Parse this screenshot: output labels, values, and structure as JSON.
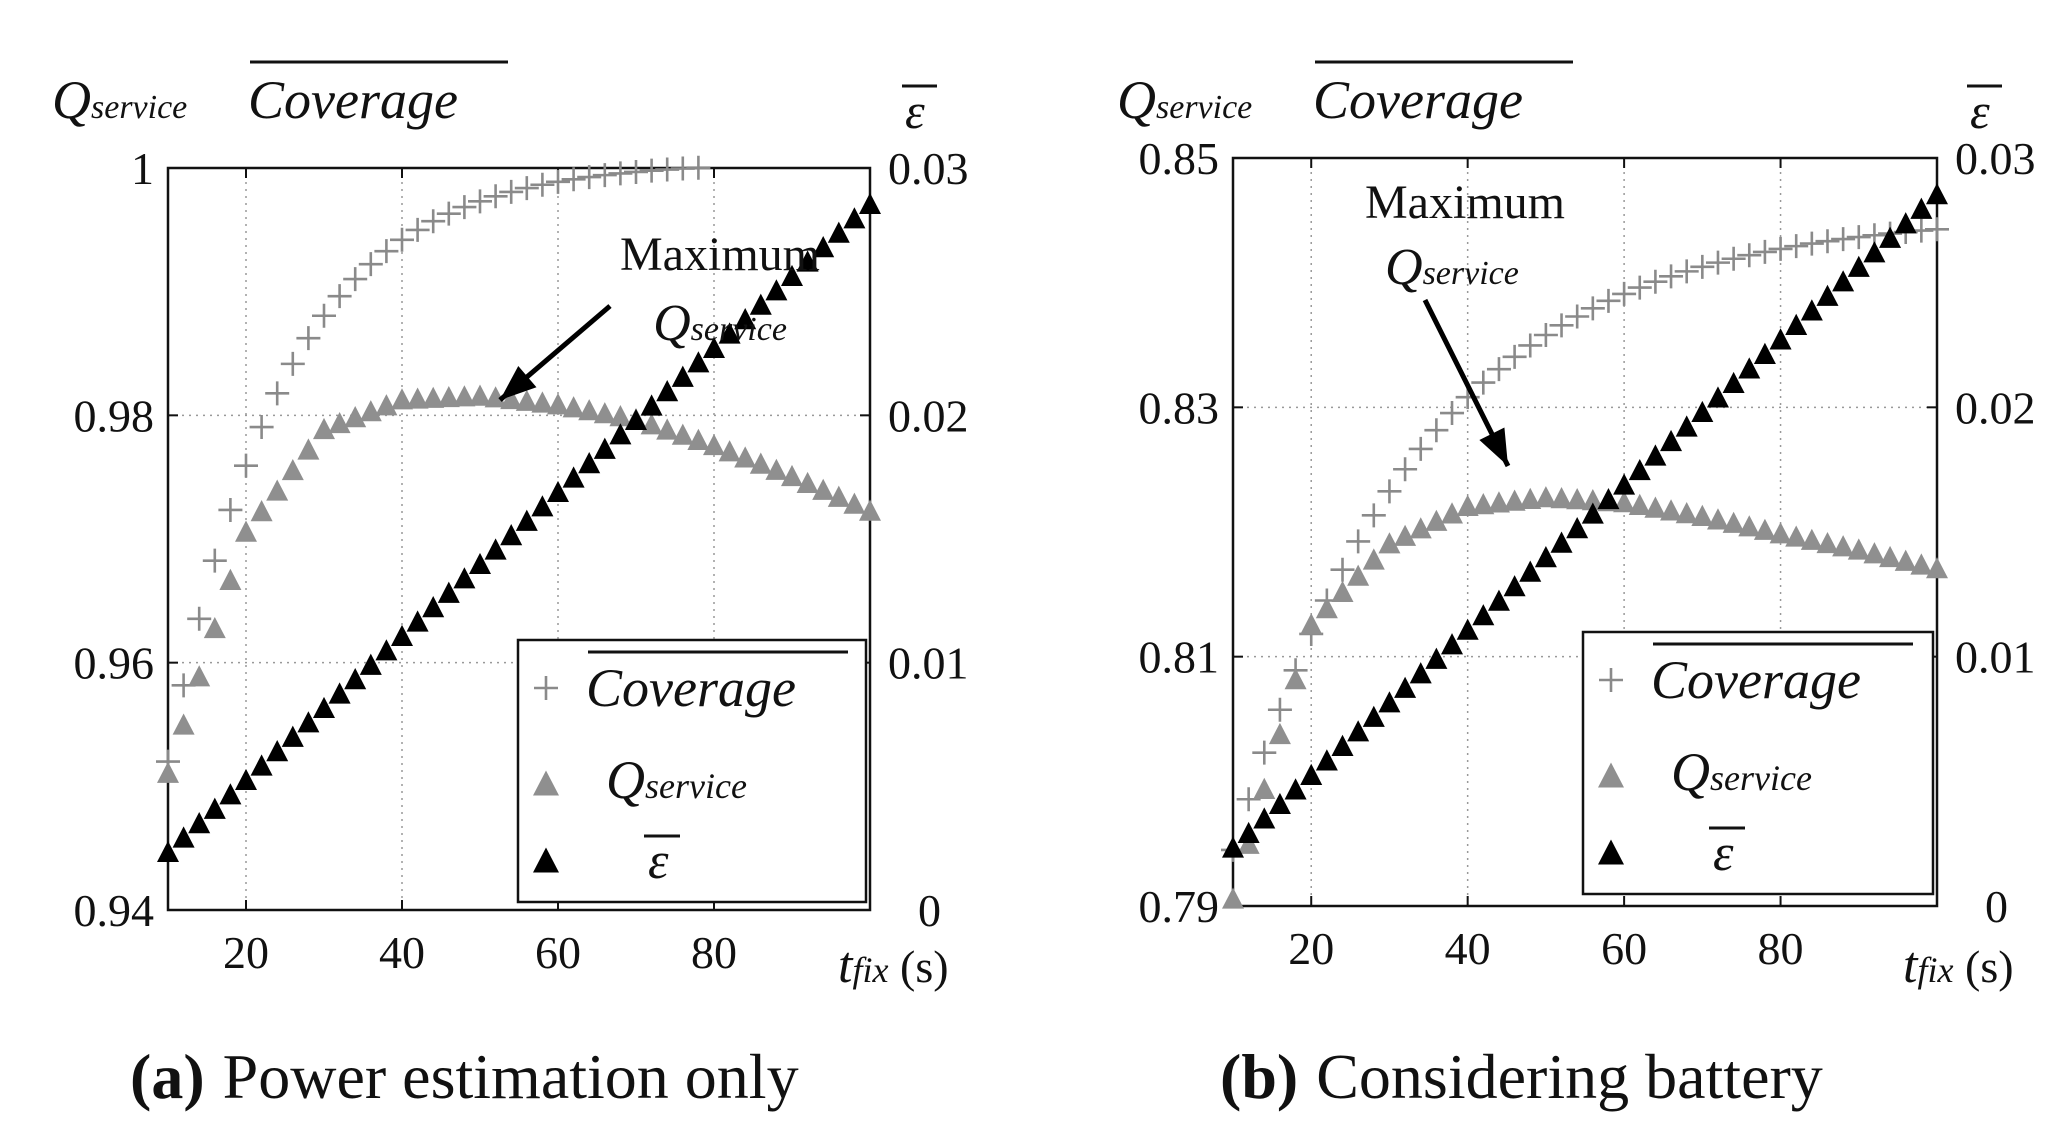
{
  "colors": {
    "coverage": "#8a8a8a",
    "qservice": "#8f8f8f",
    "epsilon": "#000000",
    "grid": "#999999"
  },
  "labels": {
    "q_main": "Q",
    "q_sub": "service",
    "coverage": "Coverage",
    "epsilon": "ε",
    "tfix_main": "t",
    "tfix_sub": "fix",
    "seconds": "(s)",
    "maximum": "Maximum"
  },
  "chart_data": [
    {
      "type": "scatter",
      "panel": "a",
      "panel_label": "(a)",
      "title": "Power estimation only",
      "xlabel": "t_fix (s)",
      "ylabel_left": "Q_service, Coverage (mean)",
      "ylabel_right": "ε (mean)",
      "xlim": [
        10,
        100
      ],
      "ylim_left": [
        0.94,
        1.0
      ],
      "ylim_right": [
        0,
        0.03
      ],
      "x_ticks": [
        20,
        40,
        60,
        80
      ],
      "x_tick_labels": [
        "20",
        "40",
        "60",
        "80"
      ],
      "y_left_ticks": [
        0.94,
        0.96,
        0.98,
        1.0
      ],
      "y_left_tick_labels": [
        "0.94",
        "0.96",
        "0.98",
        "1"
      ],
      "y_right_ticks": [
        0,
        0.01,
        0.02,
        0.03
      ],
      "y_right_tick_labels": [
        "0",
        "0.01",
        "0.02",
        "0.03"
      ],
      "legend": [
        "Coverage",
        "Q_service",
        "ε"
      ],
      "legend_position": "bottom-right",
      "annotation": {
        "text": "Maximum Q_service",
        "points_to": [
          52,
          0.981
        ]
      },
      "series": [
        {
          "name": "Coverage",
          "marker": "plus",
          "axis": "left",
          "model": {
            "form": "exp",
            "v0": 0.952,
            "vinf": 1.0005,
            "k": 0.068,
            "x0": 10
          }
        },
        {
          "name": "Q_service",
          "marker": "triangle",
          "axis": "left",
          "model": {
            "form": "poly",
            "points": [
              [
                10,
                0.951
              ],
              [
                20,
                0.9705
              ],
              [
                30,
                0.9788
              ],
              [
                40,
                0.9812
              ],
              [
                50,
                0.9815
              ],
              [
                60,
                0.9808
              ],
              [
                70,
                0.9796
              ],
              [
                80,
                0.9775
              ],
              [
                90,
                0.975
              ],
              [
                100,
                0.9722
              ]
            ]
          }
        },
        {
          "name": "ε",
          "marker": "triangle",
          "axis": "right",
          "model": {
            "form": "linear",
            "x1": 10,
            "y1": 0.0023,
            "x2": 100,
            "y2": 0.0285
          }
        }
      ]
    },
    {
      "type": "scatter",
      "panel": "b",
      "panel_label": "(b)",
      "title": "Considering battery",
      "xlabel": "t_fix (s)",
      "ylabel_left": "Q_service, Coverage (mean)",
      "ylabel_right": "ε (mean)",
      "xlim": [
        10,
        100
      ],
      "ylim_left": [
        0.79,
        0.85
      ],
      "ylim_right": [
        0,
        0.03
      ],
      "x_ticks": [
        20,
        40,
        60,
        80
      ],
      "x_tick_labels": [
        "20",
        "40",
        "60",
        "80"
      ],
      "y_left_ticks": [
        0.79,
        0.81,
        0.83,
        0.85
      ],
      "y_left_tick_labels": [
        "0.79",
        "0.81",
        "0.83",
        "0.85"
      ],
      "y_right_ticks": [
        0,
        0.01,
        0.02,
        0.03
      ],
      "y_right_tick_labels": [
        "0",
        "0.01",
        "0.02",
        "0.03"
      ],
      "legend": [
        "Coverage",
        "Q_service",
        "ε"
      ],
      "legend_position": "bottom-right",
      "annotation": {
        "text": "Maximum Q_service",
        "points_to": [
          47,
          0.8225
        ]
      },
      "series": [
        {
          "name": "Coverage",
          "marker": "plus",
          "axis": "left",
          "model": {
            "form": "exp",
            "v0": 0.7945,
            "vinf": 0.8455,
            "k": 0.0415,
            "x0": 10
          }
        },
        {
          "name": "Q_service",
          "marker": "triangle",
          "axis": "left",
          "model": {
            "form": "poly",
            "points": [
              [
                10,
                0.7905
              ],
              [
                20,
                0.8125
              ],
              [
                30,
                0.819
              ],
              [
                40,
                0.822
              ],
              [
                50,
                0.8227
              ],
              [
                60,
                0.8223
              ],
              [
                70,
                0.8212
              ],
              [
                80,
                0.8198
              ],
              [
                90,
                0.8185
              ],
              [
                100,
                0.817
              ]
            ]
          }
        },
        {
          "name": "ε",
          "marker": "triangle",
          "axis": "right",
          "model": {
            "form": "linear",
            "x1": 10,
            "y1": 0.0023,
            "x2": 100,
            "y2": 0.0285
          }
        }
      ]
    }
  ]
}
